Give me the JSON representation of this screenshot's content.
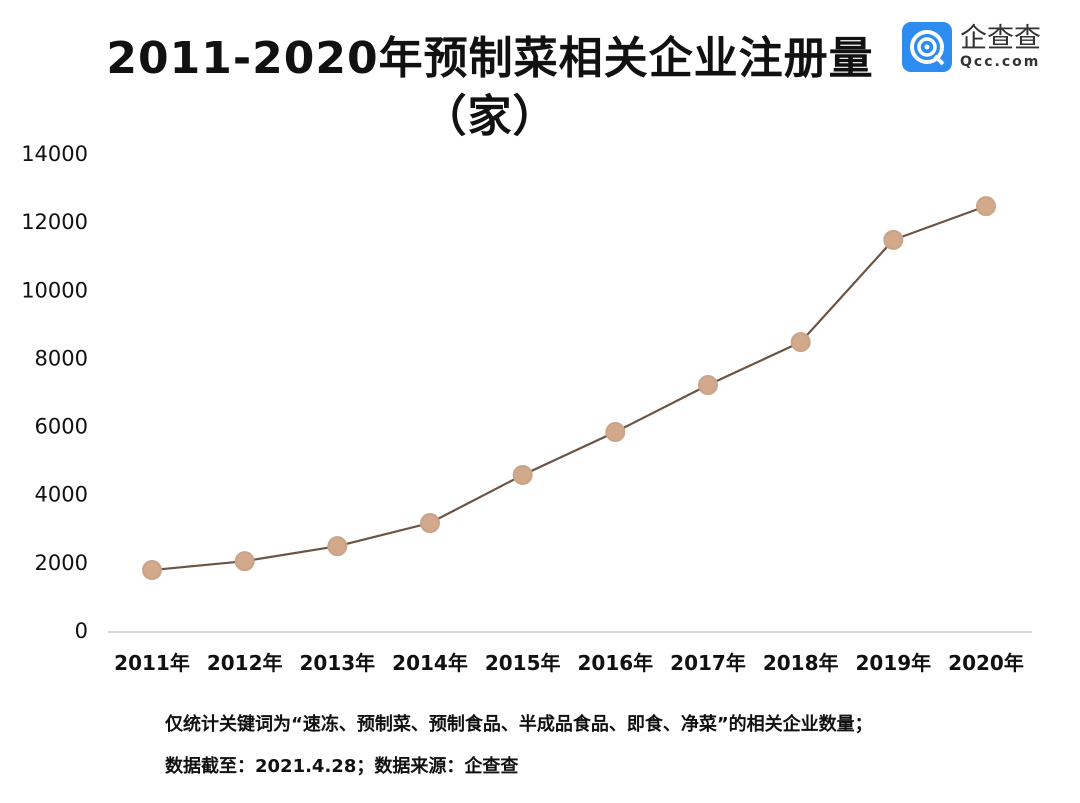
{
  "header": {
    "title_line1": "2011-2020年预制菜相关企业注册量",
    "title_line2": "（家）"
  },
  "logo": {
    "cn": "企查查",
    "en": "Qcc.com",
    "color": "#2d8cf0"
  },
  "footnote": {
    "line1": "仅统计关键词为“速冻、预制菜、预制食品、半成品食品、即食、净菜”的相关企业数量；",
    "line2": "数据截至：2021.4.28；数据来源：企查查"
  },
  "chart_data": {
    "type": "line",
    "title": "2011-2020年预制菜相关企业注册量（家）",
    "categories": [
      "2011年",
      "2012年",
      "2013年",
      "2014年",
      "2015年",
      "2016年",
      "2017年",
      "2018年",
      "2019年",
      "2020年"
    ],
    "values": [
      1760,
      2020,
      2460,
      3140,
      4550,
      5810,
      7190,
      8450,
      11450,
      12440
    ],
    "ylim": [
      0,
      14000
    ],
    "yticks": [
      "0",
      "2000",
      "4000",
      "6000",
      "8000",
      "10000",
      "12000",
      "14000"
    ],
    "grid": false,
    "line_color": "#6b5443",
    "marker_color": "#d2a98a"
  }
}
